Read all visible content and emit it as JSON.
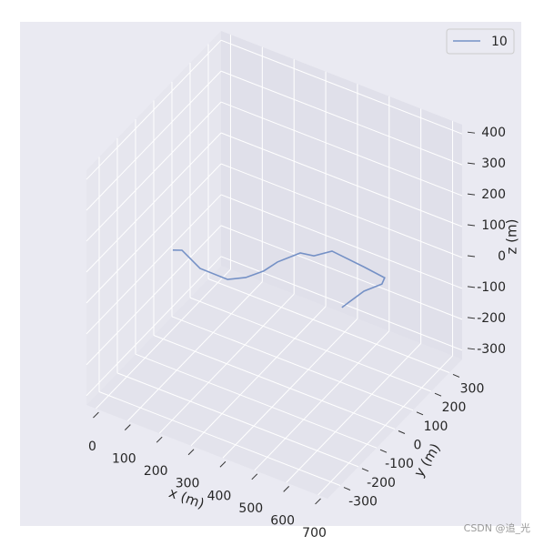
{
  "chart_data": {
    "type": "line3d",
    "xlabel": "x (m)",
    "ylabel": "y (m)",
    "zlabel": "z (m)",
    "xlim": [
      -30,
      730
    ],
    "ylim": [
      -370,
      370
    ],
    "zlim": [
      -330,
      430
    ],
    "xticks": [
      0,
      100,
      200,
      300,
      400,
      500,
      600,
      700
    ],
    "yticks": [
      -300,
      -200,
      -100,
      0,
      100,
      200,
      300
    ],
    "zticks": [
      -300,
      -200,
      -100,
      0,
      100,
      200,
      300,
      400
    ],
    "grid": true,
    "legend": "upper right",
    "series": [
      {
        "name": "10",
        "color": "#7591c6",
        "x": [
          30,
          59,
          116,
          203,
          260,
          317,
          360,
          432,
          475,
          532,
          633,
          698,
          698,
          698,
          698
        ],
        "y": [
          0,
          0,
          0,
          0,
          0,
          0,
          0,
          0,
          0,
          0,
          0,
          0,
          -15,
          -114,
          -235
        ],
        "z": [
          -30,
          -19,
          -55,
          -56,
          -27,
          17,
          63,
          121,
          129,
          167,
          156,
          147,
          136,
          173,
          194
        ]
      }
    ],
    "watermark": "CSDN @追_光"
  }
}
